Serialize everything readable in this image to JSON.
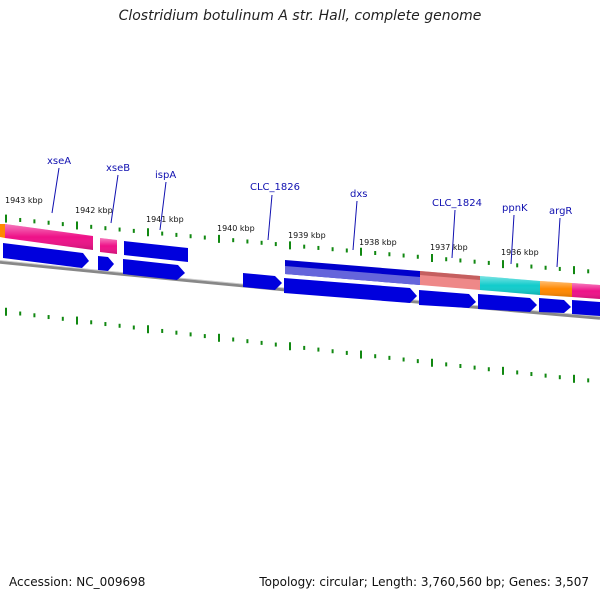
{
  "title": "Clostridium botulinum A str. Hall, complete genome",
  "footer": {
    "accession": "Accession: NC_009698",
    "stats": "Topology: circular; Length: 3,760,560 bp; Genes: 3,507"
  },
  "ruler_labels": [
    "1943 kbp",
    "1942 kbp",
    "1941 kbp",
    "1940 kbp",
    "1939 kbp",
    "1938 kbp",
    "1937 kbp",
    "1936 kbp"
  ],
  "gene_labels": [
    "xseA",
    "xseB",
    "ispA",
    "CLC_1826",
    "dxs",
    "CLC_1824",
    "ppnK",
    "argR"
  ],
  "colors": {
    "cds": "#0000dd",
    "pink": "#ee1188",
    "salmon": "#ee8888",
    "cyan": "#11cccc",
    "orange": "#ff8800",
    "purple": "#6666cc",
    "tick": "#118811",
    "backbone": "#888888",
    "label": "#1010b0"
  }
}
